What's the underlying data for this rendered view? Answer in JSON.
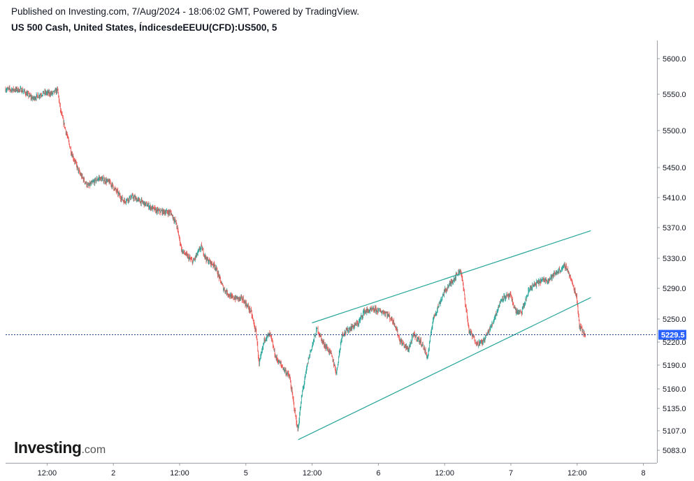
{
  "header": {
    "published": "Published on Investing.com, 7/Aug/2024 - 18:06:02 GMT, Powered by TradingView.",
    "symbol_title": "US 500 Cash, United States, ÍndicesdeEEUU(CFD):US500, 5"
  },
  "logo": {
    "main": "Investing",
    "suffix": ".com"
  },
  "colors": {
    "up": "#26a69a",
    "down": "#ef5350",
    "trendline": "#26a69a",
    "last_price_line": "#1e3a8a",
    "price_tag": "#2962ff"
  },
  "chart_data": {
    "type": "candlestick",
    "title": "US 500 Cash, United States, ÍndicesdeEEUU(CFD):US500, 5",
    "x_ticks": [
      "12:00",
      "2",
      "12:00",
      "5",
      "12:00",
      "6",
      "12:00",
      "7",
      "12:00",
      "8"
    ],
    "y_ticks": [
      5600.0,
      5550.0,
      5500.0,
      5450.0,
      5410.0,
      5370.0,
      5330.0,
      5290.0,
      5250.0,
      5220.0,
      5190.0,
      5160.0,
      5135.0,
      5107.0,
      5083.0
    ],
    "y_tick_labels": [
      "5600.0",
      "5550.0",
      "5500.0",
      "5450.0",
      "5410.0",
      "5370.0",
      "5330.0",
      "5290.0",
      "5250.0",
      "5220.0",
      "5190.0",
      "5160.0",
      "5135.0",
      "5107.0",
      "5083.0"
    ],
    "last_price": 5229.5,
    "last_price_label": "5229.5",
    "path_points": [
      [
        0.0,
        5557
      ],
      [
        3.0,
        5556
      ],
      [
        5.0,
        5544
      ],
      [
        7.0,
        5552
      ],
      [
        8.5,
        5551
      ],
      [
        9.5,
        5556
      ],
      [
        10.0,
        5528
      ],
      [
        12.0,
        5470
      ],
      [
        13.5,
        5442
      ],
      [
        15.0,
        5425
      ],
      [
        17.0,
        5436
      ],
      [
        19.0,
        5430
      ],
      [
        21.5,
        5405
      ],
      [
        23.0,
        5411
      ],
      [
        25.0,
        5403
      ],
      [
        27.5,
        5392
      ],
      [
        30.0,
        5390
      ],
      [
        31.0,
        5375
      ],
      [
        32.0,
        5340
      ],
      [
        34.0,
        5325
      ],
      [
        35.5,
        5345
      ],
      [
        36.5,
        5328
      ],
      [
        38.0,
        5320
      ],
      [
        39.5,
        5290
      ],
      [
        41.0,
        5278
      ],
      [
        43.0,
        5276
      ],
      [
        44.5,
        5260
      ],
      [
        45.5,
        5230
      ],
      [
        46.0,
        5190
      ],
      [
        47.0,
        5225
      ],
      [
        48.0,
        5230
      ],
      [
        49.0,
        5200
      ],
      [
        50.0,
        5190
      ],
      [
        51.5,
        5175
      ],
      [
        52.5,
        5130
      ],
      [
        53.0,
        5107
      ],
      [
        53.8,
        5155
      ],
      [
        55.0,
        5200
      ],
      [
        56.5,
        5238
      ],
      [
        57.5,
        5220
      ],
      [
        59.0,
        5205
      ],
      [
        60.0,
        5180
      ],
      [
        61.0,
        5230
      ],
      [
        62.5,
        5238
      ],
      [
        64.0,
        5245
      ],
      [
        65.0,
        5260
      ],
      [
        67.0,
        5262
      ],
      [
        69.0,
        5258
      ],
      [
        70.5,
        5245
      ],
      [
        71.5,
        5222
      ],
      [
        73.0,
        5210
      ],
      [
        74.0,
        5230
      ],
      [
        75.5,
        5218
      ],
      [
        76.5,
        5200
      ],
      [
        77.5,
        5250
      ],
      [
        79.5,
        5285
      ],
      [
        81.0,
        5300
      ],
      [
        82.5,
        5315
      ],
      [
        83.0,
        5290
      ],
      [
        84.0,
        5235
      ],
      [
        85.5,
        5218
      ],
      [
        86.5,
        5220
      ],
      [
        88.0,
        5240
      ],
      [
        90.0,
        5278
      ],
      [
        91.5,
        5280
      ],
      [
        92.5,
        5260
      ],
      [
        93.5,
        5258
      ],
      [
        95.0,
        5290
      ],
      [
        97.0,
        5300
      ],
      [
        98.5,
        5302
      ],
      [
        100.0,
        5312
      ],
      [
        101.5,
        5320
      ],
      [
        102.0,
        5312
      ],
      [
        103.0,
        5290
      ],
      [
        103.5,
        5280
      ],
      [
        104.0,
        5242
      ],
      [
        105.0,
        5229
      ]
    ],
    "trendlines": [
      {
        "name": "upper",
        "from": [
          55.5,
          5245
        ],
        "to": [
          106.0,
          5366
        ]
      },
      {
        "name": "lower",
        "from": [
          53.0,
          5096
        ],
        "to": [
          106.0,
          5278
        ]
      }
    ],
    "grid": false,
    "x_axis": {
      "ticks_at_hours": [
        6,
        18,
        30,
        42,
        54,
        66,
        78,
        90,
        102,
        114
      ]
    }
  }
}
